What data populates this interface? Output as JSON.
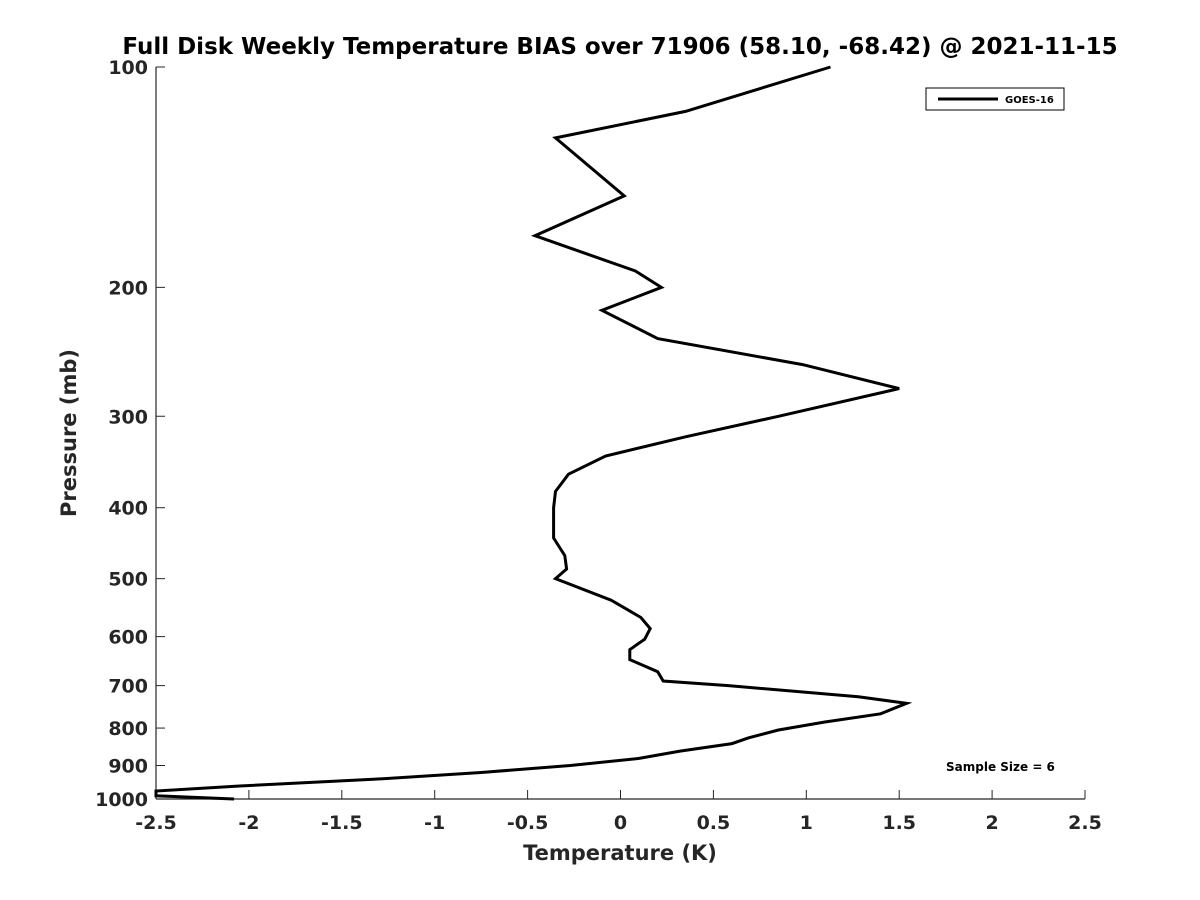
{
  "chart_data": {
    "type": "line",
    "title": "Full Disk Weekly Temperature BIAS over 71906 (58.10, -68.42) @ 2021-11-15",
    "xlabel": "Temperature (K)",
    "ylabel": "Pressure (mb)",
    "xlim": [
      -2.5,
      2.5
    ],
    "ylim": [
      1000,
      100
    ],
    "yscale": "log",
    "ydirection": "reverse",
    "xticks": [
      -2.5,
      -2,
      -1.5,
      -1,
      -0.5,
      0,
      0.5,
      1,
      1.5,
      2,
      2.5
    ],
    "xtick_labels": [
      "-2.5",
      "-2",
      "-1.5",
      "-1",
      "-0.5",
      "0",
      "0.5",
      "1",
      "1.5",
      "2",
      "2.5"
    ],
    "yticks": [
      100,
      200,
      300,
      400,
      500,
      600,
      700,
      800,
      900,
      1000
    ],
    "ytick_labels": [
      "100",
      "200",
      "300",
      "400",
      "500",
      "600",
      "700",
      "800",
      "900",
      "1000"
    ],
    "grid": false,
    "legend": {
      "position": "top-right",
      "entries": [
        "GOES-16"
      ]
    },
    "annotation": "Sample Size = 6",
    "series": [
      {
        "name": "GOES-16",
        "color": "#000000",
        "points": [
          [
            1.13,
            100
          ],
          [
            0.35,
            115
          ],
          [
            -0.35,
            125
          ],
          [
            0.02,
            150
          ],
          [
            -0.46,
            170
          ],
          [
            0.08,
            190
          ],
          [
            0.22,
            200
          ],
          [
            -0.1,
            215
          ],
          [
            0.2,
            235
          ],
          [
            0.98,
            255
          ],
          [
            1.5,
            275
          ],
          [
            0.85,
            300
          ],
          [
            0.35,
            320
          ],
          [
            -0.08,
            340
          ],
          [
            -0.28,
            360
          ],
          [
            -0.35,
            380
          ],
          [
            -0.36,
            400
          ],
          [
            -0.36,
            420
          ],
          [
            -0.36,
            440
          ],
          [
            -0.3,
            465
          ],
          [
            -0.29,
            485
          ],
          [
            -0.35,
            500
          ],
          [
            -0.05,
            535
          ],
          [
            0.11,
            565
          ],
          [
            0.16,
            585
          ],
          [
            0.13,
            605
          ],
          [
            0.05,
            625
          ],
          [
            0.05,
            645
          ],
          [
            0.2,
            670
          ],
          [
            0.23,
            690
          ],
          [
            0.58,
            700
          ],
          [
            1.28,
            725
          ],
          [
            1.54,
            740
          ],
          [
            1.4,
            765
          ],
          [
            1.1,
            785
          ],
          [
            0.85,
            805
          ],
          [
            0.69,
            825
          ],
          [
            0.6,
            840
          ],
          [
            0.32,
            860
          ],
          [
            0.1,
            880
          ],
          [
            -0.27,
            900
          ],
          [
            -0.75,
            920
          ],
          [
            -1.33,
            940
          ],
          [
            -2.05,
            960
          ],
          [
            -2.5,
            975
          ],
          [
            -2.5,
            990
          ],
          [
            -2.08,
            1000
          ]
        ]
      }
    ]
  }
}
